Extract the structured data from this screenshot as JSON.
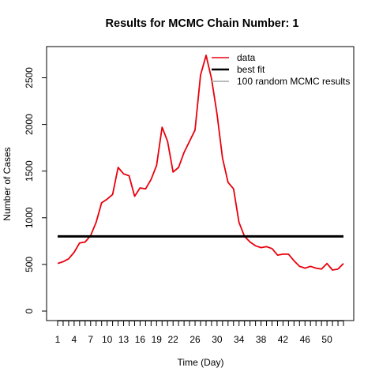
{
  "chart_data": {
    "type": "line",
    "title": "Results for MCMC Chain Number: 1",
    "xlabel": "Time (Day)",
    "ylabel": "Number of Cases",
    "xlim": [
      1,
      53
    ],
    "ylim": [
      0,
      2600
    ],
    "x_ticks": [
      1,
      2,
      3,
      4,
      5,
      6,
      7,
      8,
      9,
      10,
      11,
      12,
      13,
      14,
      15,
      16,
      17,
      18,
      19,
      20,
      21,
      22,
      23,
      24,
      25,
      26,
      27,
      28,
      29,
      30,
      31,
      32,
      33,
      34,
      35,
      36,
      37,
      38,
      39,
      40,
      41,
      42,
      43,
      44,
      45,
      46,
      47,
      48,
      49,
      50,
      51,
      52,
      53
    ],
    "x_tick_labels": [
      {
        "x": 1,
        "label": "1"
      },
      {
        "x": 4,
        "label": "4"
      },
      {
        "x": 7,
        "label": "7"
      },
      {
        "x": 10,
        "label": "10"
      },
      {
        "x": 13,
        "label": "13"
      },
      {
        "x": 16,
        "label": "16"
      },
      {
        "x": 19,
        "label": "19"
      },
      {
        "x": 22,
        "label": "22"
      },
      {
        "x": 26,
        "label": "26"
      },
      {
        "x": 30,
        "label": "30"
      },
      {
        "x": 34,
        "label": "34"
      },
      {
        "x": 38,
        "label": "38"
      },
      {
        "x": 42,
        "label": "42"
      },
      {
        "x": 46,
        "label": "46"
      },
      {
        "x": 50,
        "label": "50"
      }
    ],
    "y_ticks": [
      0,
      500,
      1000,
      1500,
      2000,
      2500
    ],
    "y_tick_labels": [
      "0",
      "500",
      "1000",
      "1500",
      "2000",
      "2500"
    ],
    "grid": false,
    "legend_position": "top-right",
    "series": [
      {
        "name": "data",
        "color": "#e8000b",
        "x": [
          1,
          2,
          3,
          4,
          5,
          6,
          7,
          8,
          9,
          10,
          11,
          12,
          13,
          14,
          15,
          16,
          17,
          18,
          19,
          20,
          21,
          22,
          23,
          24,
          25,
          26,
          27,
          28,
          29,
          30,
          31,
          32,
          33,
          34,
          35,
          36,
          37,
          38,
          39,
          40,
          41,
          42,
          43,
          44,
          45,
          46,
          47,
          48,
          49,
          50,
          51,
          52,
          53
        ],
        "y": [
          510,
          530,
          560,
          630,
          730,
          740,
          810,
          950,
          1160,
          1200,
          1250,
          1540,
          1470,
          1450,
          1230,
          1320,
          1310,
          1410,
          1560,
          1970,
          1820,
          1490,
          1540,
          1700,
          1820,
          1940,
          2530,
          2740,
          2490,
          2110,
          1640,
          1380,
          1310,
          950,
          800,
          740,
          700,
          680,
          690,
          670,
          600,
          610,
          610,
          540,
          480,
          460,
          480,
          460,
          450,
          510,
          440,
          450,
          510
        ]
      },
      {
        "name": "best fit",
        "color": "#000000",
        "x": [
          1,
          53
        ],
        "y": [
          800,
          800
        ]
      },
      {
        "name": "100 random MCMC results",
        "color": "#a6a6a6",
        "x": [],
        "y": []
      }
    ]
  }
}
